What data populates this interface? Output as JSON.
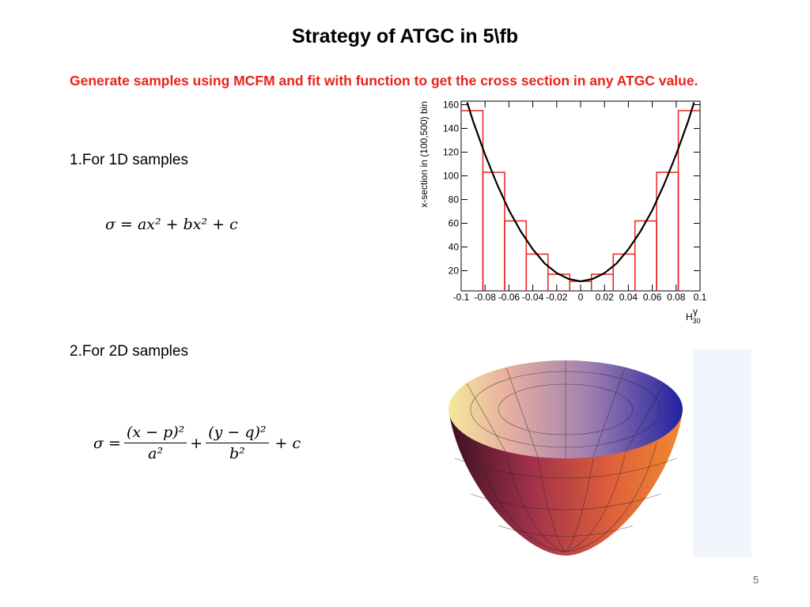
{
  "title": "Strategy of ATGC in 5\\fb",
  "intro": "Generate samples using MCFM and fit with function to get the cross section in any ATGC value.",
  "item1": "1.For 1D samples",
  "formula1": "σ = ax² + bx² + c",
  "item2": "2.For 2D samples",
  "formula2": {
    "lhs": "σ =",
    "num1": "(x − p)²",
    "den1": "a²",
    "plus": "+",
    "num2": "(y − q)²",
    "den2": "b²",
    "tail": "+ c"
  },
  "page_number": "5",
  "chart_data": {
    "type": "histogram",
    "ylabel": "x-section in (100,500) bin",
    "xlabel": "H",
    "xlabel_sup": "γ",
    "xlabel_sub": "30",
    "bins": [
      -0.1,
      -0.0818,
      -0.0636,
      -0.0455,
      -0.0273,
      -0.0091,
      0.0091,
      0.0273,
      0.0455,
      0.0636,
      0.0818,
      0.1
    ],
    "counts": [
      155,
      103,
      62,
      34,
      17,
      11,
      17,
      34,
      62,
      103,
      155
    ],
    "color": "#e8231c",
    "fit": {
      "color": "#000000",
      "x": [
        -0.095,
        -0.09,
        -0.08,
        -0.07,
        -0.06,
        -0.05,
        -0.04,
        -0.03,
        -0.02,
        -0.01,
        0,
        0.01,
        0.02,
        0.03,
        0.04,
        0.05,
        0.06,
        0.07,
        0.08,
        0.09,
        0.095
      ],
      "values": [
        162,
        146,
        118,
        93,
        71,
        53,
        38,
        26,
        18,
        13,
        11,
        13,
        18,
        26,
        38,
        53,
        71,
        93,
        118,
        146,
        162
      ]
    },
    "xlim": [
      -0.1,
      0.1
    ],
    "ylim": [
      3,
      163
    ],
    "xticks": [
      -0.1,
      -0.08,
      -0.06,
      -0.04,
      -0.02,
      0,
      0.02,
      0.04,
      0.06,
      0.08,
      0.1
    ],
    "yticks": [
      20,
      40,
      60,
      80,
      100,
      120,
      140,
      160
    ]
  }
}
